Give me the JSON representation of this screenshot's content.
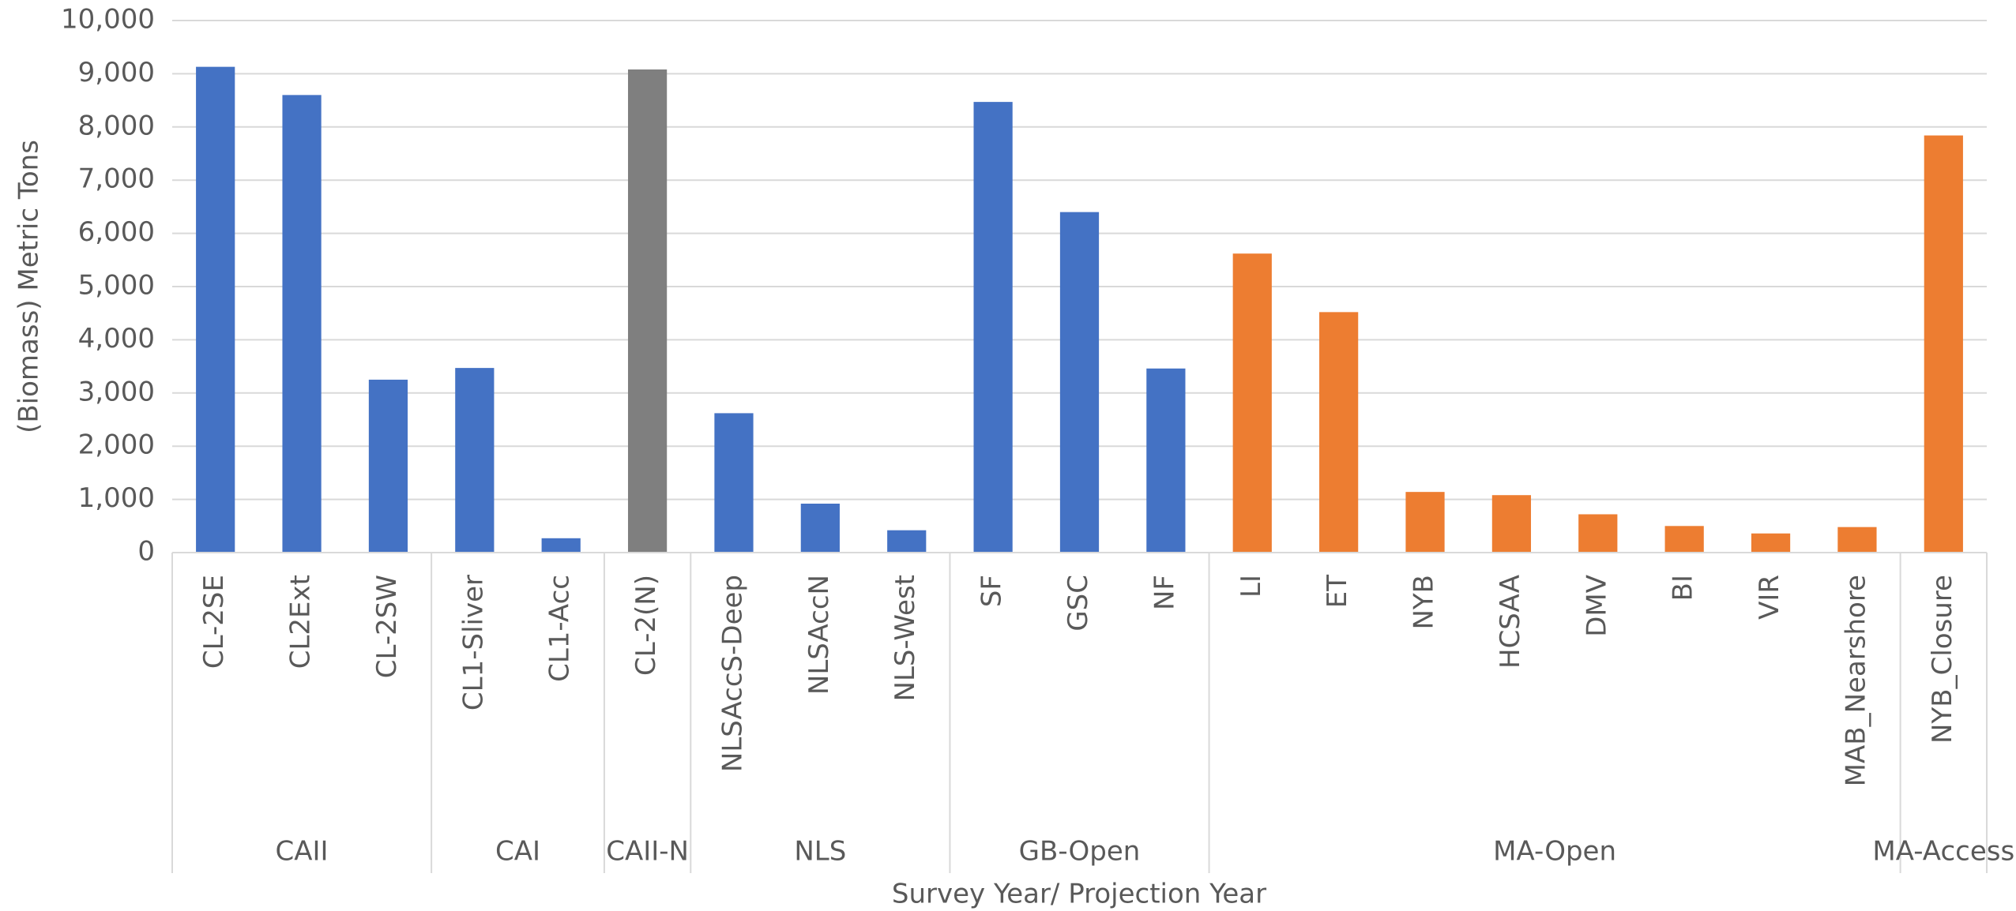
{
  "chart_data": {
    "type": "bar",
    "ylabel": "(Biomass) Metric Tons",
    "xlabel": "Survey Year/ Projection Year",
    "ylim": [
      0,
      10000
    ],
    "yticks": [
      0,
      {
        "value": 1000,
        "label": "1,000"
      },
      {
        "value": 2000,
        "label": "2,000"
      },
      {
        "value": 3000,
        "label": "3,000"
      },
      {
        "value": 4000,
        "label": "4,000"
      },
      {
        "value": 5000,
        "label": "5,000"
      },
      {
        "value": 6000,
        "label": "6,000"
      },
      {
        "value": 7000,
        "label": "7,000"
      },
      {
        "value": 8000,
        "label": "8,000"
      },
      {
        "value": 9000,
        "label": "9,000"
      },
      {
        "value": 10000,
        "label": "10,000"
      }
    ],
    "grid": true,
    "groups": [
      {
        "name": "CAII",
        "color": "#4472c4",
        "categories": [
          "CL-2SE",
          "CL2Ext",
          "CL-2SW"
        ],
        "values": [
          9130,
          8600,
          3250
        ]
      },
      {
        "name": "CAI",
        "color": "#4472c4",
        "categories": [
          "CL1-Sliver",
          "CL1-Acc"
        ],
        "values": [
          3470,
          270
        ]
      },
      {
        "name": "CAII-N",
        "color": "#7f7f7f",
        "categories": [
          "CL-2(N)"
        ],
        "values": [
          9080
        ]
      },
      {
        "name": "NLS",
        "color": "#4472c4",
        "categories": [
          "NLSAccS-Deep",
          "NLSAccN",
          "NLS-West"
        ],
        "values": [
          2620,
          920,
          420
        ]
      },
      {
        "name": "GB-Open",
        "color": "#4472c4",
        "categories": [
          "SF",
          "GSC",
          "NF"
        ],
        "values": [
          8470,
          6400,
          3460
        ]
      },
      {
        "name": "MA-Open",
        "color": "#ed7d31",
        "categories": [
          "LI",
          "ET",
          "NYB",
          "HCSAA",
          "DMV",
          "BI",
          "VIR",
          "MAB_Nearshore"
        ],
        "values": [
          5620,
          4520,
          1140,
          1080,
          720,
          500,
          360,
          480
        ]
      },
      {
        "name": "MA-Access",
        "color": "#ed7d31",
        "categories": [
          "NYB_Closure"
        ],
        "values": [
          7840
        ]
      }
    ]
  }
}
